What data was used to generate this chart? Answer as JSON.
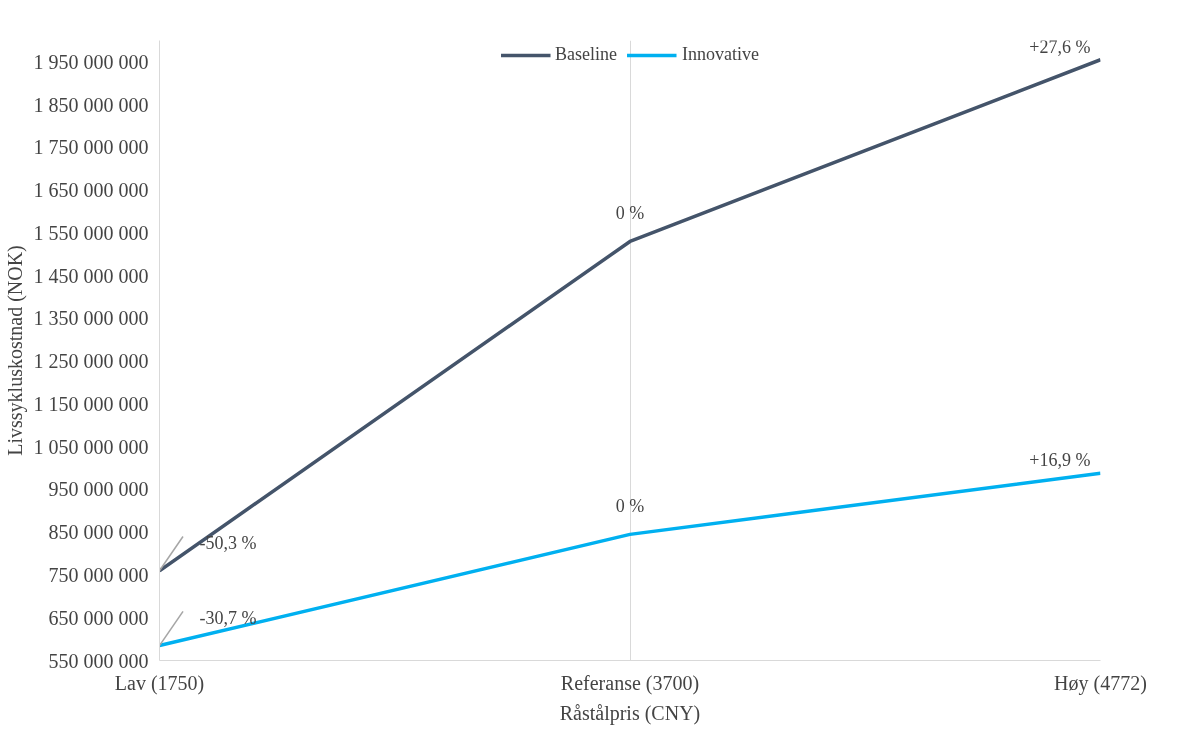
{
  "chart_data": {
    "type": "line",
    "xlabel": "Råstålpris (CNY)",
    "ylabel": "Livssykluskostnad (NOK)",
    "categories": [
      "Lav (1750)",
      "Referanse (3700)",
      "Høy (4772)"
    ],
    "series": [
      {
        "name": "Baseline",
        "color": "#44546a",
        "values": [
          760000000,
          1530000000,
          1955000000
        ]
      },
      {
        "name": "Innovative",
        "color": "#00b0f0",
        "values": [
          585000000,
          845000000,
          988000000
        ]
      }
    ],
    "ylim": [
      550000000,
      2000000000
    ],
    "yticks": [
      {
        "value": 550000000,
        "label": "550 000 000"
      },
      {
        "value": 650000000,
        "label": "650 000 000"
      },
      {
        "value": 750000000,
        "label": "750 000 000"
      },
      {
        "value": 850000000,
        "label": "850 000 000"
      },
      {
        "value": 950000000,
        "label": "950 000 000"
      },
      {
        "value": 1050000000,
        "label": "1 050 000 000"
      },
      {
        "value": 1150000000,
        "label": "1 150 000 000"
      },
      {
        "value": 1250000000,
        "label": "1 250 000 000"
      },
      {
        "value": 1350000000,
        "label": "1 350 000 000"
      },
      {
        "value": 1450000000,
        "label": "1 450 000 000"
      },
      {
        "value": 1550000000,
        "label": "1 550 000 000"
      },
      {
        "value": 1650000000,
        "label": "1 650 000 000"
      },
      {
        "value": 1750000000,
        "label": "1 750 000 000"
      },
      {
        "value": 1850000000,
        "label": "1 850 000 000"
      },
      {
        "value": 1950000000,
        "label": "1 950 000 000"
      }
    ],
    "annotations": [
      {
        "text": "-50,3 %",
        "x": "Lav (1750)",
        "y": 760000000
      },
      {
        "text": "0 %",
        "x": "Referanse (3700)",
        "y": 1530000000
      },
      {
        "text": "+27,6 %",
        "x": "Høy (4772)",
        "y": 1955000000
      },
      {
        "text": "-30,7 %",
        "x": "Lav (1750)",
        "y": 585000000
      },
      {
        "text": "0 %",
        "x": "Referanse (3700)",
        "y": 845000000
      },
      {
        "text": "+16,9 %",
        "x": "Høy (4772)",
        "y": 988000000
      }
    ],
    "grid": "x",
    "legend": "top",
    "marker": "none",
    "line_style": "solid"
  }
}
